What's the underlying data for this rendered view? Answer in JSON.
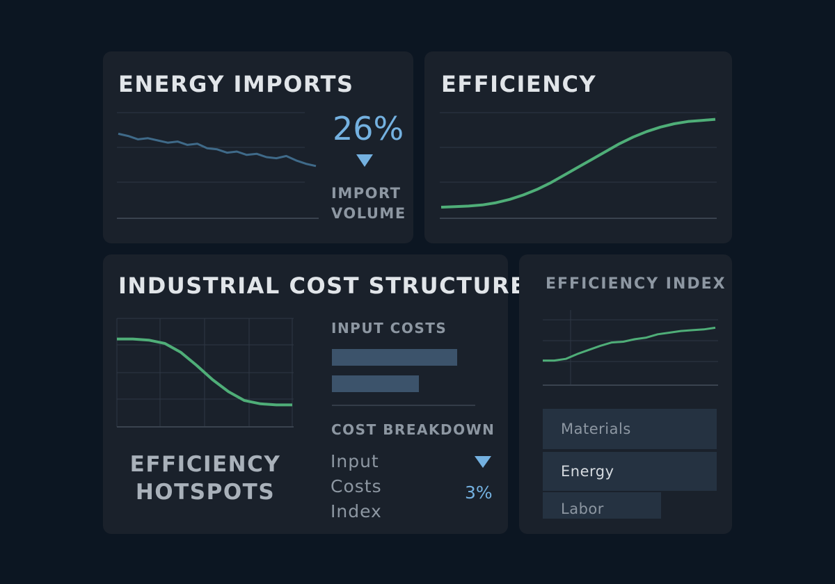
{
  "panels": {
    "energy_imports": {
      "title": "ENERGY IMPORTS",
      "kpi_value": "26%",
      "kpi_label_line1": "IMPORT",
      "kpi_label_line2": "VOLUME"
    },
    "efficiency": {
      "title": "EFFICIENCY"
    },
    "industrial": {
      "title": "INDUSTRIAL COST STRUCTURES",
      "hotspots_line1": "EFFICIENCY",
      "hotspots_line2": "HOTSPOTS",
      "input_costs_title": "INPUT COSTS",
      "cost_breakdown_title": "COST BREAKDOWN",
      "breakdown_line1": "Input",
      "breakdown_line2": "Costs",
      "breakdown_line3": "Index",
      "breakdown_value": "3%"
    },
    "efficiency_index": {
      "title": "EFFICIENCY INDEX",
      "legend": [
        "Materials",
        "Energy",
        "Labor"
      ]
    }
  },
  "colors": {
    "accent_blue": "#74b1e0",
    "line_blue": "#3f6a89",
    "line_green": "#4fae78",
    "bar_blue": "#3c536b"
  },
  "chart_data": [
    {
      "type": "line",
      "series": [
        {
          "values": [
            76,
            74,
            71,
            72,
            70,
            68,
            69,
            66,
            67,
            63,
            62,
            59,
            60,
            57,
            58,
            55,
            54,
            56,
            52,
            49,
            47
          ]
        }
      ]
    },
    {
      "type": "line",
      "series": [
        {
          "values": [
            10,
            10.5,
            11,
            12,
            14,
            17,
            21,
            26,
            32,
            39,
            46,
            53,
            60,
            67,
            73,
            78,
            82,
            85,
            87,
            88,
            89
          ]
        }
      ]
    },
    {
      "type": "line",
      "series": [
        {
          "values": [
            80,
            80,
            79,
            76,
            68,
            56,
            43,
            32,
            24,
            21,
            20,
            20
          ]
        }
      ]
    },
    {
      "type": "bar",
      "values": [
        72,
        50
      ]
    },
    {
      "type": "line",
      "series": [
        {
          "values": [
            30,
            30,
            32,
            38,
            43,
            48,
            52,
            53,
            56,
            58,
            62,
            64,
            66,
            67,
            68,
            70
          ]
        }
      ]
    },
    {
      "type": "bar",
      "values": [
        100,
        100,
        68
      ]
    }
  ]
}
